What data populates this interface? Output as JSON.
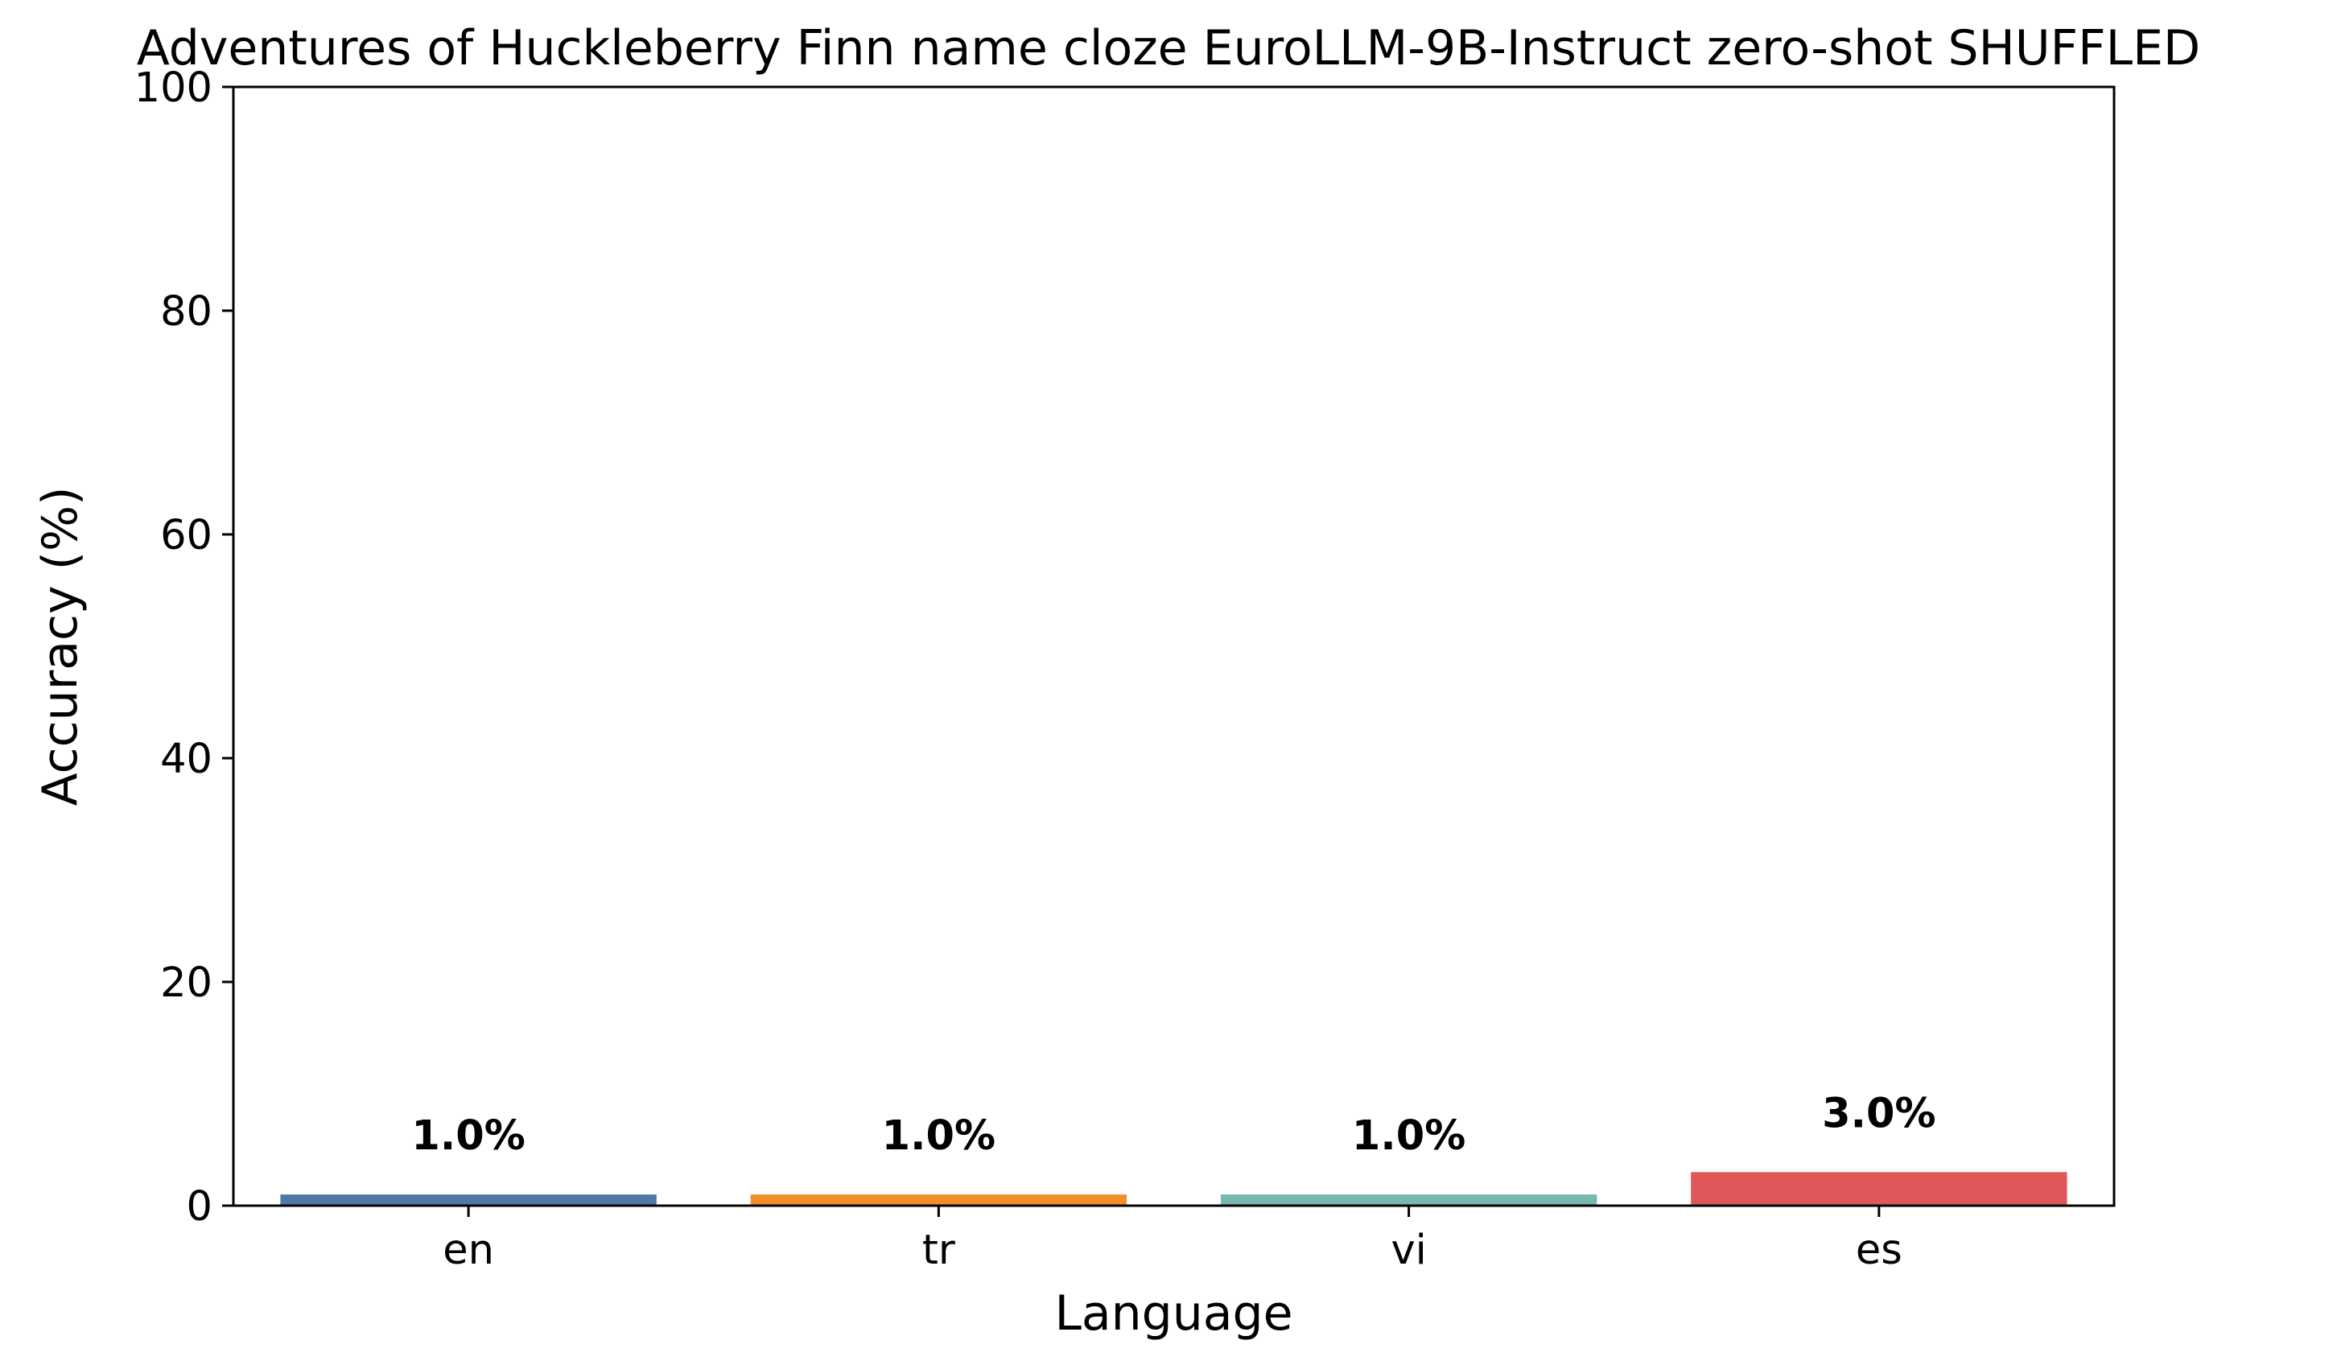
{
  "chart_data": {
    "type": "bar",
    "title": "Adventures of Huckleberry Finn name cloze EuroLLM-9B-Instruct zero-shot SHUFFLED",
    "xlabel": "Language",
    "ylabel": "Accuracy (%)",
    "categories": [
      "en",
      "tr",
      "vi",
      "es"
    ],
    "values": [
      1.0,
      1.0,
      1.0,
      3.0
    ],
    "data_labels": [
      "1.0%",
      "1.0%",
      "1.0%",
      "3.0%"
    ],
    "colors": [
      "#4e79a7",
      "#f28e2b",
      "#76b7b2",
      "#e15759"
    ],
    "ylim": [
      0,
      100
    ],
    "yticks": [
      0,
      20,
      40,
      60,
      80,
      100
    ],
    "grid": false,
    "legend": "none"
  }
}
